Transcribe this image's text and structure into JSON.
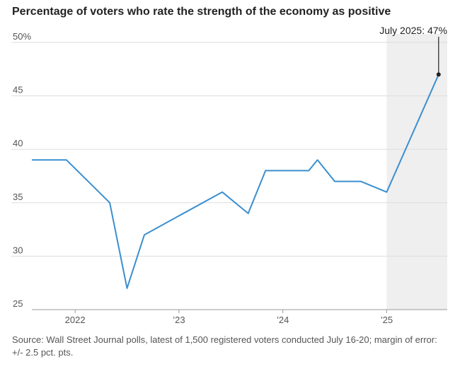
{
  "title": "Percentage of voters who rate the strength of the economy as positive",
  "source": "Source: Wall Street Journal polls, latest of 1,500 registered voters conducted July 16-20; margin of error: +/- 2.5 pct. pts.",
  "colors": {
    "line": "#3a8fd0",
    "highlight_band": "#efefef",
    "grid": "#dddddd",
    "marker": "#222222"
  },
  "chart_data": {
    "type": "line",
    "title": "Percentage of voters who rate the strength of the economy as positive",
    "xlabel": "",
    "ylabel": "",
    "ylim": [
      25,
      50
    ],
    "y_ticks": [
      {
        "value": 50,
        "label": "50%"
      },
      {
        "value": 45,
        "label": "45"
      },
      {
        "value": 40,
        "label": "40"
      },
      {
        "value": 35,
        "label": "35"
      },
      {
        "value": 30,
        "label": "30"
      },
      {
        "value": 25,
        "label": "25"
      }
    ],
    "x_ticks": [
      {
        "value": "2022-01",
        "label": "2022"
      },
      {
        "value": "2023-01",
        "label": "’23"
      },
      {
        "value": "2024-01",
        "label": "’24"
      },
      {
        "value": "2025-01",
        "label": "’25"
      }
    ],
    "xlim": [
      "2021-08",
      "2025-08"
    ],
    "grid": true,
    "highlight_range": [
      "2025-01",
      "2025-08"
    ],
    "series": [
      {
        "x": [
          "2021-08",
          "2021-12",
          "2022-05",
          "2022-07",
          "2022-09",
          "2023-06",
          "2023-09",
          "2023-11",
          "2024-04",
          "2024-05",
          "2024-07",
          "2024-10",
          "2025-01",
          "2025-07"
        ],
        "values": [
          39,
          39,
          35,
          27,
          32,
          36,
          34,
          38,
          38,
          39,
          37,
          37,
          36,
          47
        ]
      }
    ],
    "annotation": {
      "x": "2025-07",
      "y": 47,
      "text": "July 2025: 47%"
    }
  }
}
